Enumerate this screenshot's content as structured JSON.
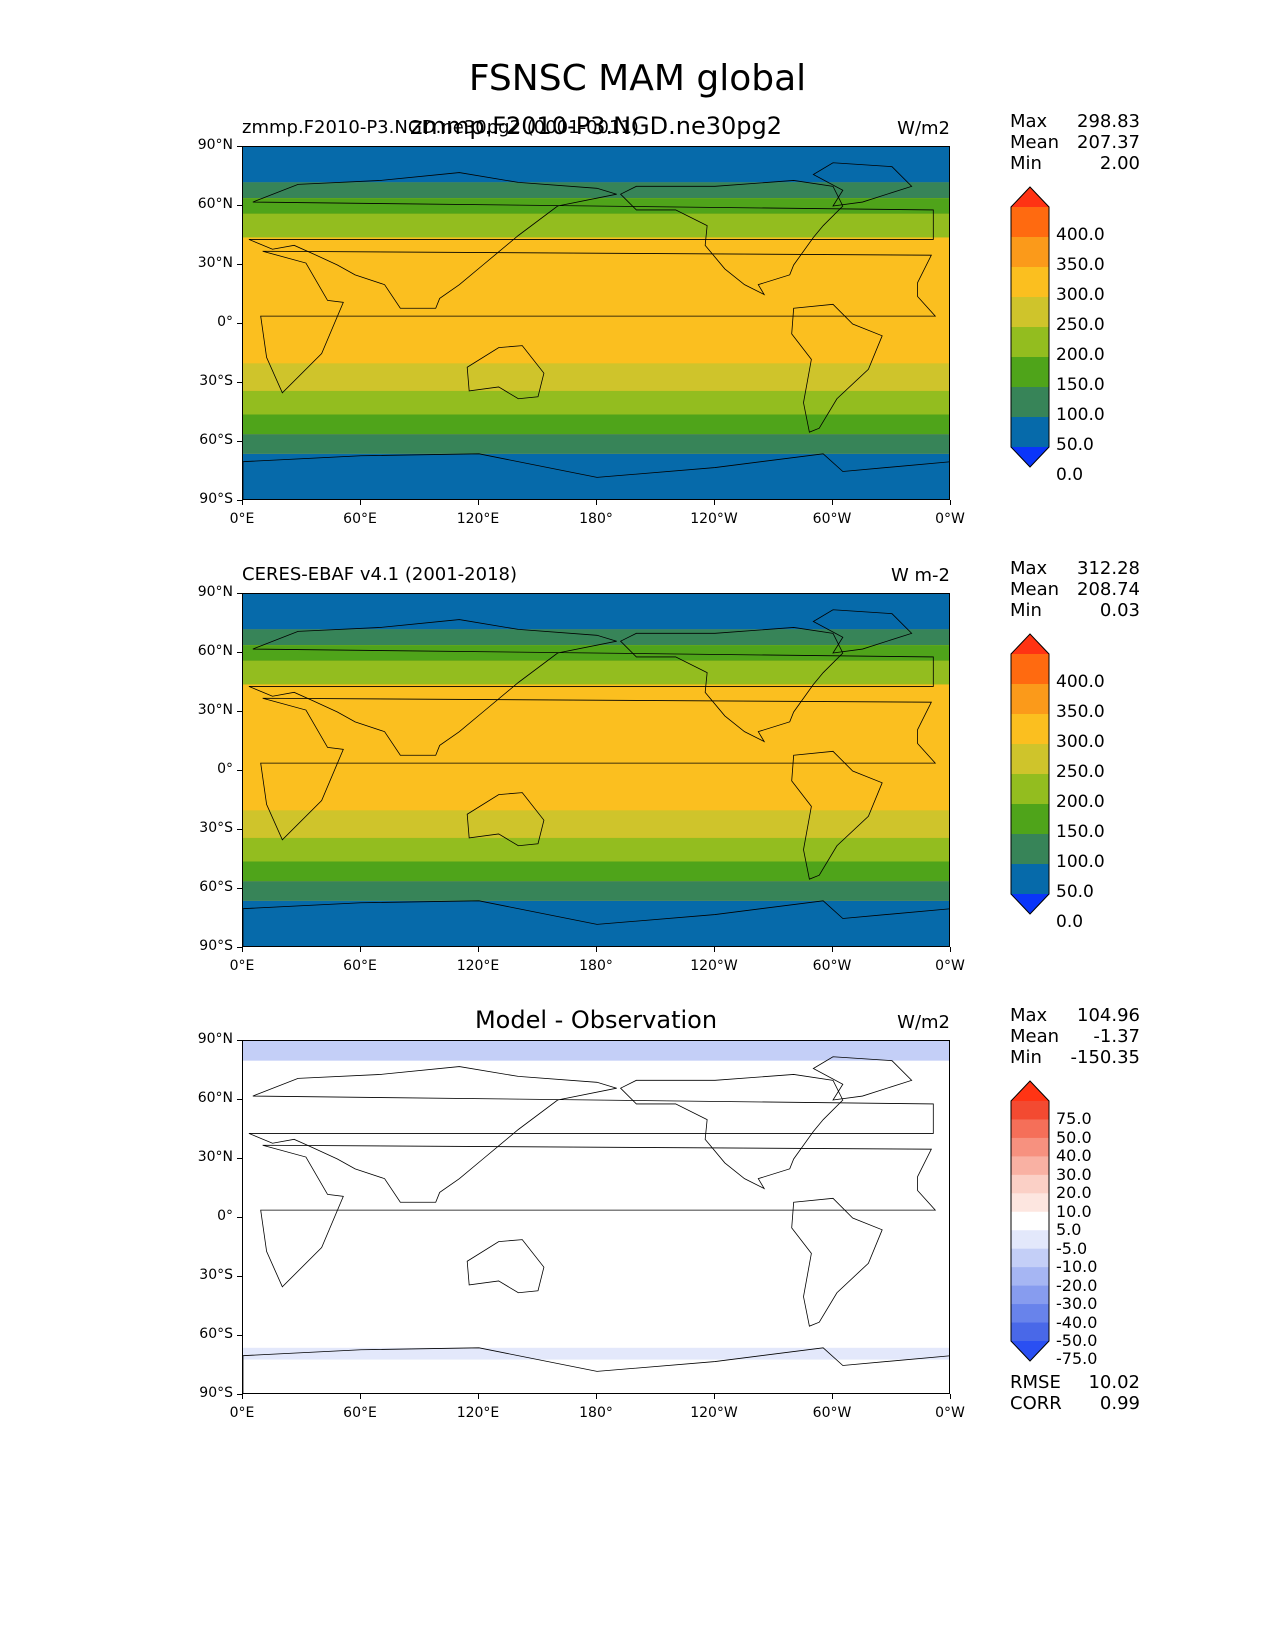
{
  "figure": {
    "title": "FSNSC MAM global"
  },
  "chart_data": [
    {
      "type": "heatmap",
      "panel": "model",
      "title_left": "zmmp.F2010-P3.NGD.ne30pg2 (0001-0011)",
      "title_center": "zmmp.F2010-P3.NGD.ne30pg2",
      "units": "W/m2",
      "x_ticks": [
        "0°E",
        "60°E",
        "120°E",
        "180°",
        "120°W",
        "60°W",
        "0°W"
      ],
      "y_ticks": [
        "90°N",
        "60°N",
        "30°N",
        "0°",
        "30°S",
        "60°S",
        "90°S"
      ],
      "xlim": [
        0,
        360
      ],
      "ylim": [
        -90,
        90
      ],
      "stats": {
        "max_label": "Max",
        "max": "298.83",
        "mean_label": "Mean",
        "mean": "207.37",
        "min_label": "Min",
        "min": "2.00"
      },
      "colorbar": {
        "levels": [
          "400.0",
          "350.0",
          "300.0",
          "250.0",
          "200.0",
          "150.0",
          "100.0",
          "50.0",
          "0.0"
        ],
        "colors": [
          "#ff3313",
          "#ff6a10",
          "#fb9a1a",
          "#fbbf1f",
          "#cfc42b",
          "#93bd1f",
          "#4fa41a",
          "#378458",
          "#066aaa",
          "#0a35fa"
        ]
      },
      "zonal_bands": [
        {
          "lat": [
            72,
            90
          ],
          "value": 30
        },
        {
          "lat": [
            64,
            72
          ],
          "value": 80
        },
        {
          "lat": [
            56,
            64
          ],
          "value": 120
        },
        {
          "lat": [
            44,
            56
          ],
          "value": 175
        },
        {
          "lat": [
            -20,
            44
          ],
          "value": 270
        },
        {
          "lat": [
            -34,
            -20
          ],
          "value": 225
        },
        {
          "lat": [
            -46,
            -34
          ],
          "value": 175
        },
        {
          "lat": [
            -56,
            -46
          ],
          "value": 130
        },
        {
          "lat": [
            -66,
            -56
          ],
          "value": 80
        },
        {
          "lat": [
            -90,
            -66
          ],
          "value": 30
        }
      ]
    },
    {
      "type": "heatmap",
      "panel": "observation",
      "title_left": "CERES-EBAF v4.1 (2001-2018)",
      "units": "W m-2",
      "x_ticks": [
        "0°E",
        "60°E",
        "120°E",
        "180°",
        "120°W",
        "60°W",
        "0°W"
      ],
      "y_ticks": [
        "90°N",
        "60°N",
        "30°N",
        "0°",
        "30°S",
        "60°S",
        "90°S"
      ],
      "xlim": [
        0,
        360
      ],
      "ylim": [
        -90,
        90
      ],
      "stats": {
        "max_label": "Max",
        "max": "312.28",
        "mean_label": "Mean",
        "mean": "208.74",
        "min_label": "Min",
        "min": "0.03"
      },
      "colorbar": {
        "levels": [
          "400.0",
          "350.0",
          "300.0",
          "250.0",
          "200.0",
          "150.0",
          "100.0",
          "50.0",
          "0.0"
        ],
        "colors": [
          "#ff3313",
          "#ff6a10",
          "#fb9a1a",
          "#fbbf1f",
          "#cfc42b",
          "#93bd1f",
          "#4fa41a",
          "#378458",
          "#066aaa",
          "#0a35fa"
        ]
      },
      "zonal_bands": [
        {
          "lat": [
            72,
            90
          ],
          "value": 30
        },
        {
          "lat": [
            64,
            72
          ],
          "value": 80
        },
        {
          "lat": [
            56,
            64
          ],
          "value": 120
        },
        {
          "lat": [
            44,
            56
          ],
          "value": 175
        },
        {
          "lat": [
            -20,
            44
          ],
          "value": 270
        },
        {
          "lat": [
            -34,
            -20
          ],
          "value": 225
        },
        {
          "lat": [
            -46,
            -34
          ],
          "value": 175
        },
        {
          "lat": [
            -56,
            -46
          ],
          "value": 130
        },
        {
          "lat": [
            -66,
            -56
          ],
          "value": 80
        },
        {
          "lat": [
            -90,
            -66
          ],
          "value": 30
        }
      ]
    },
    {
      "type": "heatmap",
      "panel": "difference",
      "title_center": "Model - Observation",
      "units": "W/m2",
      "x_ticks": [
        "0°E",
        "60°E",
        "120°E",
        "180°",
        "120°W",
        "60°W",
        "0°W"
      ],
      "y_ticks": [
        "90°N",
        "60°N",
        "30°N",
        "0°",
        "30°S",
        "60°S",
        "90°S"
      ],
      "xlim": [
        0,
        360
      ],
      "ylim": [
        -90,
        90
      ],
      "stats": {
        "max_label": "Max",
        "max": "104.96",
        "mean_label": "Mean",
        "mean": "-1.37",
        "min_label": "Min",
        "min": "-150.35"
      },
      "error_stats": {
        "rmse_label": "RMSE",
        "rmse": "10.02",
        "corr_label": "CORR",
        "corr": "0.99"
      },
      "colorbar": {
        "levels": [
          "75.0",
          "50.0",
          "40.0",
          "30.0",
          "20.0",
          "10.0",
          "5.0",
          "-5.0",
          "-10.0",
          "-20.0",
          "-30.0",
          "-40.0",
          "-50.0",
          "-75.0"
        ],
        "colors": [
          "#ff3414",
          "#f34a31",
          "#f56f59",
          "#f7917f",
          "#f9b1a3",
          "#fbd0c6",
          "#fde6e0",
          "#ffffff",
          "#e3e8fb",
          "#c4cff7",
          "#a6b6f3",
          "#879cef",
          "#6883eb",
          "#4968e8",
          "#2a4ff2"
        ]
      },
      "zonal_bands": [
        {
          "lat": [
            80,
            90
          ],
          "value": -12
        },
        {
          "lat": [
            -72,
            -66
          ],
          "value": -6
        }
      ]
    }
  ]
}
